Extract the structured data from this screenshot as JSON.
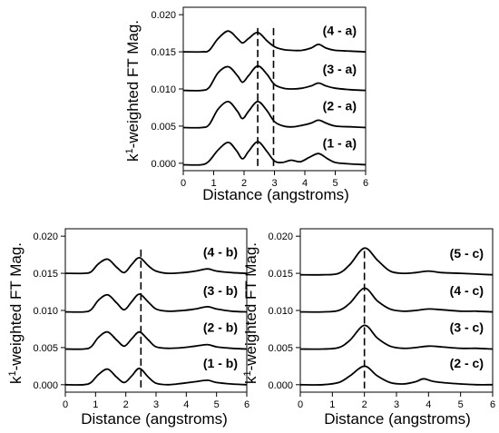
{
  "chart_data": [
    {
      "type": "line",
      "title": "",
      "xlabel": "Distance (angstroms)",
      "ylabel": "k-weighted FT Mag.",
      "ylabel_superscript": "1",
      "xlim": [
        0,
        6
      ],
      "ylim": [
        -0.001,
        0.021
      ],
      "xticks": [
        "0",
        "1",
        "2",
        "3",
        "4",
        "5",
        "6"
      ],
      "yticks": [
        "0.000",
        "0.005",
        "0.010",
        "0.015",
        "0.020"
      ],
      "dashed_lines": [
        2.45,
        2.97
      ],
      "series": [
        {
          "name": "(4 - a)",
          "points": [
            [
              0,
              0.015
            ],
            [
              0.6,
              0.015
            ],
            [
              0.85,
              0.0152
            ],
            [
              1.15,
              0.0168
            ],
            [
              1.48,
              0.0178
            ],
            [
              1.78,
              0.0168
            ],
            [
              1.95,
              0.0162
            ],
            [
              2.15,
              0.0168
            ],
            [
              2.45,
              0.0176
            ],
            [
              2.75,
              0.0165
            ],
            [
              3.0,
              0.0157
            ],
            [
              3.3,
              0.0153
            ],
            [
              3.6,
              0.0152
            ],
            [
              3.9,
              0.0152
            ],
            [
              4.2,
              0.0155
            ],
            [
              4.45,
              0.016
            ],
            [
              4.7,
              0.0155
            ],
            [
              5.0,
              0.0152
            ],
            [
              5.5,
              0.0151
            ],
            [
              6.0,
              0.015
            ]
          ]
        },
        {
          "name": "(3 - a)",
          "points": [
            [
              0,
              0.0098
            ],
            [
              0.6,
              0.0098
            ],
            [
              0.85,
              0.0102
            ],
            [
              1.15,
              0.0122
            ],
            [
              1.48,
              0.013
            ],
            [
              1.78,
              0.0118
            ],
            [
              1.95,
              0.0109
            ],
            [
              2.15,
              0.0118
            ],
            [
              2.45,
              0.0131
            ],
            [
              2.75,
              0.012
            ],
            [
              3.0,
              0.0106
            ],
            [
              3.3,
              0.0101
            ],
            [
              3.6,
              0.01
            ],
            [
              3.9,
              0.0101
            ],
            [
              4.2,
              0.0104
            ],
            [
              4.45,
              0.0108
            ],
            [
              4.7,
              0.0104
            ],
            [
              5.0,
              0.0101
            ],
            [
              5.5,
              0.0099
            ],
            [
              6.0,
              0.0098
            ]
          ]
        },
        {
          "name": "(2 - a)",
          "points": [
            [
              0,
              0.0048
            ],
            [
              0.6,
              0.0048
            ],
            [
              0.85,
              0.0052
            ],
            [
              1.15,
              0.0073
            ],
            [
              1.48,
              0.0083
            ],
            [
              1.78,
              0.007
            ],
            [
              1.95,
              0.006
            ],
            [
              2.15,
              0.007
            ],
            [
              2.45,
              0.0083
            ],
            [
              2.75,
              0.0071
            ],
            [
              3.0,
              0.0056
            ],
            [
              3.3,
              0.005
            ],
            [
              3.6,
              0.0049
            ],
            [
              3.9,
              0.0051
            ],
            [
              4.2,
              0.0054
            ],
            [
              4.45,
              0.0058
            ],
            [
              4.7,
              0.0054
            ],
            [
              5.0,
              0.005
            ],
            [
              5.5,
              0.0049
            ],
            [
              6.0,
              0.0048
            ]
          ]
        },
        {
          "name": "(1 - a)",
          "points": [
            [
              0,
              -0.0002
            ],
            [
              0.6,
              -0.0002
            ],
            [
              0.85,
              0.0003
            ],
            [
              1.15,
              0.0018
            ],
            [
              1.48,
              0.0028
            ],
            [
              1.75,
              0.0017
            ],
            [
              1.95,
              0.0006
            ],
            [
              2.15,
              0.0016
            ],
            [
              2.45,
              0.0029
            ],
            [
              2.75,
              0.0016
            ],
            [
              3.0,
              0.0003
            ],
            [
              3.25,
              0.0001
            ],
            [
              3.55,
              0.0004
            ],
            [
              3.85,
              0.0002
            ],
            [
              4.15,
              0.0008
            ],
            [
              4.45,
              0.0013
            ],
            [
              4.75,
              0.0006
            ],
            [
              5.0,
              0.0001
            ],
            [
              5.5,
              -0.0001
            ],
            [
              6.0,
              -0.0002
            ]
          ]
        }
      ]
    },
    {
      "type": "line",
      "title": "",
      "xlabel": "Distance (angstroms)",
      "ylabel": "k-weighted FT Mag.",
      "ylabel_superscript": "1",
      "xlim": [
        0,
        6
      ],
      "ylim": [
        -0.001,
        0.021
      ],
      "xticks": [
        "0",
        "1",
        "2",
        "3",
        "4",
        "5",
        "6"
      ],
      "yticks": [
        "0.000",
        "0.005",
        "0.010",
        "0.015",
        "0.020"
      ],
      "dashed_lines": [
        2.5
      ],
      "series": [
        {
          "name": "(4 - b)",
          "points": [
            [
              0,
              0.015
            ],
            [
              0.6,
              0.015
            ],
            [
              0.85,
              0.0152
            ],
            [
              1.1,
              0.0163
            ],
            [
              1.4,
              0.0169
            ],
            [
              1.7,
              0.0158
            ],
            [
              1.95,
              0.0151
            ],
            [
              2.2,
              0.0162
            ],
            [
              2.45,
              0.0171
            ],
            [
              2.75,
              0.016
            ],
            [
              3.0,
              0.0153
            ],
            [
              3.4,
              0.015
            ],
            [
              3.9,
              0.0151
            ],
            [
              4.3,
              0.0153
            ],
            [
              4.7,
              0.0156
            ],
            [
              5.0,
              0.0153
            ],
            [
              5.5,
              0.0151
            ],
            [
              6.0,
              0.015
            ]
          ]
        },
        {
          "name": "(3 - b)",
          "points": [
            [
              0,
              0.0098
            ],
            [
              0.6,
              0.0098
            ],
            [
              0.85,
              0.0101
            ],
            [
              1.1,
              0.0114
            ],
            [
              1.4,
              0.0121
            ],
            [
              1.7,
              0.011
            ],
            [
              1.95,
              0.0101
            ],
            [
              2.2,
              0.0112
            ],
            [
              2.45,
              0.0122
            ],
            [
              2.75,
              0.0111
            ],
            [
              3.0,
              0.0102
            ],
            [
              3.4,
              0.0099
            ],
            [
              3.9,
              0.01
            ],
            [
              4.3,
              0.0102
            ],
            [
              4.7,
              0.0105
            ],
            [
              5.0,
              0.0102
            ],
            [
              5.5,
              0.0099
            ],
            [
              6.0,
              0.0098
            ]
          ]
        },
        {
          "name": "(2 - b)",
          "points": [
            [
              0,
              0.0048
            ],
            [
              0.6,
              0.0048
            ],
            [
              0.85,
              0.0051
            ],
            [
              1.1,
              0.0064
            ],
            [
              1.4,
              0.0071
            ],
            [
              1.7,
              0.006
            ],
            [
              1.95,
              0.0052
            ],
            [
              2.2,
              0.0062
            ],
            [
              2.45,
              0.0071
            ],
            [
              2.75,
              0.006
            ],
            [
              3.0,
              0.0051
            ],
            [
              3.4,
              0.0049
            ],
            [
              3.9,
              0.005
            ],
            [
              4.3,
              0.0052
            ],
            [
              4.7,
              0.0054
            ],
            [
              5.0,
              0.0051
            ],
            [
              5.5,
              0.0049
            ],
            [
              6.0,
              0.0048
            ]
          ]
        },
        {
          "name": "(1 - b)",
          "points": [
            [
              0,
              0.0
            ],
            [
              0.6,
              0.0
            ],
            [
              0.85,
              0.0003
            ],
            [
              1.1,
              0.0014
            ],
            [
              1.4,
              0.0021
            ],
            [
              1.7,
              0.001
            ],
            [
              1.95,
              0.0003
            ],
            [
              2.2,
              0.0012
            ],
            [
              2.45,
              0.0022
            ],
            [
              2.75,
              0.001
            ],
            [
              3.0,
              0.0002
            ],
            [
              3.4,
              0.0
            ],
            [
              3.9,
              0.0002
            ],
            [
              4.3,
              0.0004
            ],
            [
              4.7,
              0.0006
            ],
            [
              5.0,
              0.0003
            ],
            [
              5.5,
              0.0001
            ],
            [
              6.0,
              0.0
            ]
          ]
        }
      ]
    },
    {
      "type": "line",
      "title": "",
      "xlabel": "Distance (angstroms)",
      "ylabel": "k-weighted FT Mag.",
      "ylabel_superscript": "1",
      "xlim": [
        0,
        6
      ],
      "ylim": [
        -0.001,
        0.021
      ],
      "xticks": [
        "0",
        "1",
        "2",
        "3",
        "4",
        "5",
        "6"
      ],
      "yticks": [
        "0.000",
        "0.005",
        "0.010",
        "0.015",
        "0.020"
      ],
      "dashed_lines": [
        2.0
      ],
      "series": [
        {
          "name": "(5 - c)",
          "points": [
            [
              0,
              0.0148
            ],
            [
              0.7,
              0.0148
            ],
            [
              1.2,
              0.015
            ],
            [
              1.55,
              0.0162
            ],
            [
              2.0,
              0.0184
            ],
            [
              2.4,
              0.0168
            ],
            [
              2.8,
              0.0153
            ],
            [
              3.2,
              0.015
            ],
            [
              3.6,
              0.0151
            ],
            [
              4.0,
              0.0153
            ],
            [
              4.4,
              0.0151
            ],
            [
              5.0,
              0.015
            ],
            [
              5.5,
              0.0149
            ],
            [
              6.0,
              0.0148
            ]
          ]
        },
        {
          "name": "(4 - c)",
          "points": [
            [
              0,
              0.0098
            ],
            [
              0.7,
              0.0098
            ],
            [
              1.2,
              0.01
            ],
            [
              1.55,
              0.011
            ],
            [
              2.0,
              0.013
            ],
            [
              2.4,
              0.0113
            ],
            [
              2.8,
              0.0102
            ],
            [
              3.2,
              0.0099
            ],
            [
              3.6,
              0.01
            ],
            [
              4.0,
              0.0102
            ],
            [
              4.4,
              0.0101
            ],
            [
              5.0,
              0.0099
            ],
            [
              5.5,
              0.0099
            ],
            [
              6.0,
              0.0098
            ]
          ]
        },
        {
          "name": "(3 - c)",
          "points": [
            [
              0,
              0.0048
            ],
            [
              0.7,
              0.0048
            ],
            [
              1.2,
              0.005
            ],
            [
              1.55,
              0.006
            ],
            [
              2.0,
              0.008
            ],
            [
              2.4,
              0.0063
            ],
            [
              2.8,
              0.0052
            ],
            [
              3.2,
              0.0049
            ],
            [
              3.6,
              0.005
            ],
            [
              4.0,
              0.0052
            ],
            [
              4.4,
              0.0051
            ],
            [
              5.0,
              0.0049
            ],
            [
              5.5,
              0.0049
            ],
            [
              6.0,
              0.0048
            ]
          ]
        },
        {
          "name": "(2 - c)",
          "points": [
            [
              0,
              0.0
            ],
            [
              0.7,
              0.0
            ],
            [
              1.2,
              0.0003
            ],
            [
              1.55,
              0.0012
            ],
            [
              2.0,
              0.0025
            ],
            [
              2.4,
              0.0012
            ],
            [
              2.8,
              0.0003
            ],
            [
              3.2,
              0.0001
            ],
            [
              3.6,
              0.0004
            ],
            [
              3.85,
              0.0008
            ],
            [
              4.2,
              0.0004
            ],
            [
              5.0,
              0.0001
            ],
            [
              5.5,
              0.0
            ],
            [
              6.0,
              0.0
            ]
          ]
        }
      ]
    }
  ]
}
